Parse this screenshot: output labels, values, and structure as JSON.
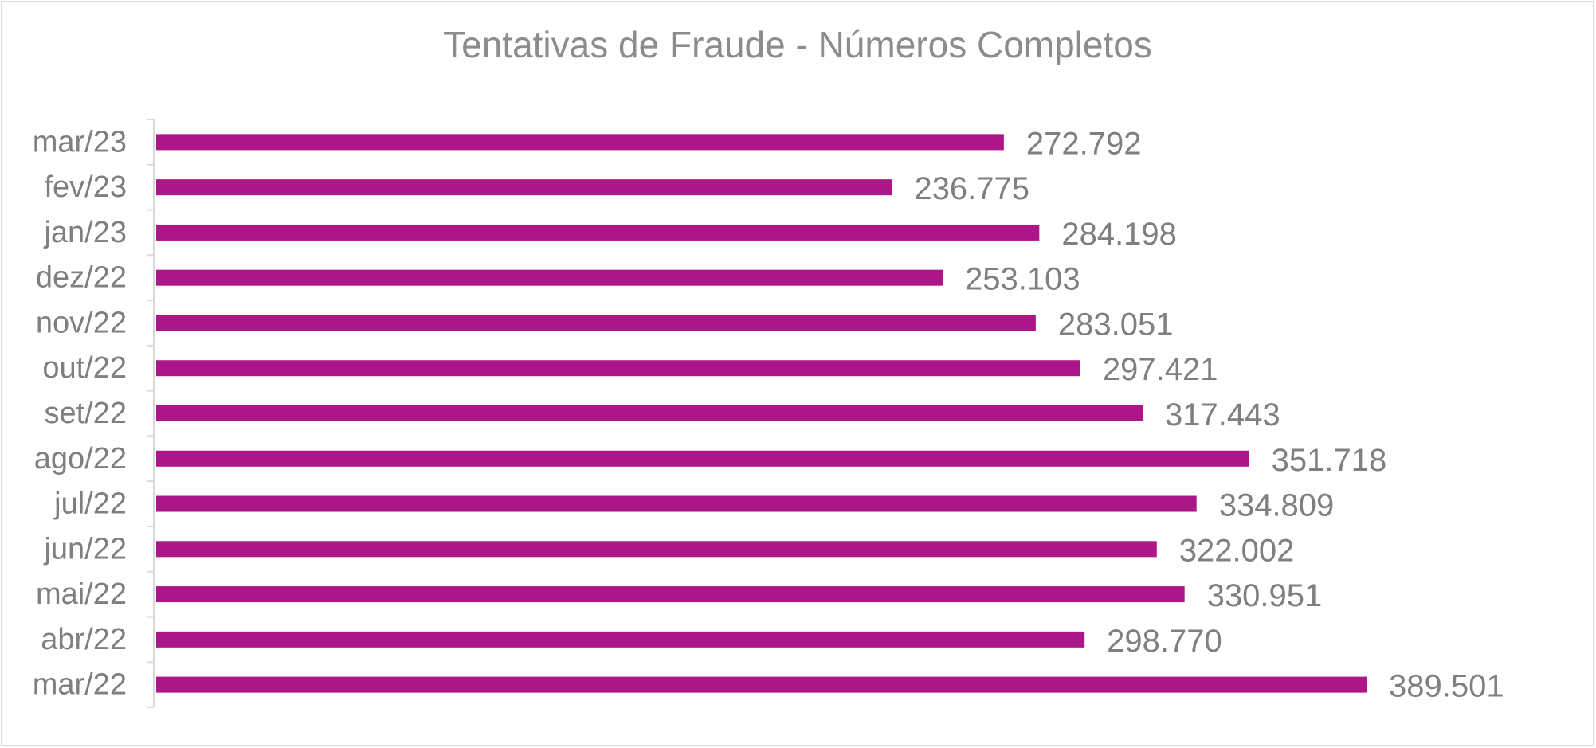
{
  "chart_data": {
    "type": "bar",
    "orientation": "horizontal",
    "title": "Tentativas de Fraude - Números Completos",
    "xlabel": "",
    "ylabel": "",
    "categories": [
      "mar/23",
      "fev/23",
      "jan/23",
      "dez/22",
      "nov/22",
      "out/22",
      "set/22",
      "ago/22",
      "jul/22",
      "jun/22",
      "mai/22",
      "abr/22",
      "mar/22"
    ],
    "values": [
      272792,
      236775,
      284198,
      253103,
      283051,
      297421,
      317443,
      351718,
      334809,
      322002,
      330951,
      298770,
      389501
    ],
    "value_labels": [
      "272.792",
      "236.775",
      "284.198",
      "253.103",
      "283.051",
      "297.421",
      "317.443",
      "351.718",
      "334.809",
      "322.002",
      "330.951",
      "298.770",
      "389.501"
    ],
    "xlim": [
      0,
      389501
    ],
    "grid": false,
    "legend": "none",
    "bar_color": "#ad1688"
  }
}
